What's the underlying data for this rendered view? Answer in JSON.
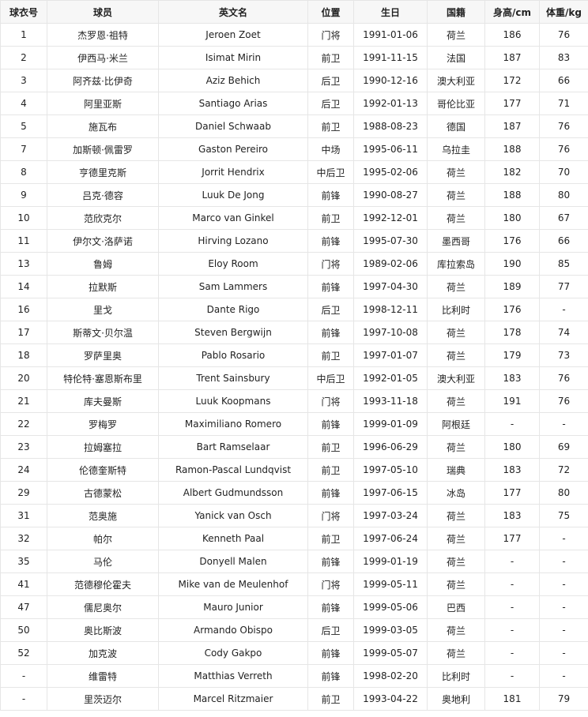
{
  "table": {
    "headers": [
      "球衣号",
      "球员",
      "英文名",
      "位置",
      "生日",
      "国籍",
      "身高/cm",
      "体重/kg"
    ],
    "rows": [
      [
        "1",
        "杰罗恩·祖特",
        "Jeroen Zoet",
        "门将",
        "1991-01-06",
        "荷兰",
        "186",
        "76"
      ],
      [
        "2",
        "伊西马·米兰",
        "Isimat Mirin",
        "前卫",
        "1991-11-15",
        "法国",
        "187",
        "83"
      ],
      [
        "3",
        "阿齐兹·比伊奇",
        "Aziz Behich",
        "后卫",
        "1990-12-16",
        "澳大利亚",
        "172",
        "66"
      ],
      [
        "4",
        "阿里亚斯",
        "Santiago Arias",
        "后卫",
        "1992-01-13",
        "哥伦比亚",
        "177",
        "71"
      ],
      [
        "5",
        "施瓦布",
        "Daniel Schwaab",
        "前卫",
        "1988-08-23",
        "德国",
        "187",
        "76"
      ],
      [
        "7",
        "加斯顿·佩雷罗",
        "Gaston Pereiro",
        "中场",
        "1995-06-11",
        "乌拉圭",
        "188",
        "76"
      ],
      [
        "8",
        "亨德里克斯",
        "Jorrit Hendrix",
        "中后卫",
        "1995-02-06",
        "荷兰",
        "182",
        "70"
      ],
      [
        "9",
        "吕克·德容",
        "Luuk De Jong",
        "前锋",
        "1990-08-27",
        "荷兰",
        "188",
        "80"
      ],
      [
        "10",
        "范欣克尔",
        "Marco van Ginkel",
        "前卫",
        "1992-12-01",
        "荷兰",
        "180",
        "67"
      ],
      [
        "11",
        "伊尔文·洛萨诺",
        "Hirving Lozano",
        "前锋",
        "1995-07-30",
        "墨西哥",
        "176",
        "66"
      ],
      [
        "13",
        "鲁姆",
        "Eloy Room",
        "门将",
        "1989-02-06",
        "库拉索岛",
        "190",
        "85"
      ],
      [
        "14",
        "拉默斯",
        "Sam Lammers",
        "前锋",
        "1997-04-30",
        "荷兰",
        "189",
        "77"
      ],
      [
        "16",
        "里戈",
        "Dante Rigo",
        "后卫",
        "1998-12-11",
        "比利时",
        "176",
        "-"
      ],
      [
        "17",
        "斯蒂文·贝尔温",
        "Steven Bergwijn",
        "前锋",
        "1997-10-08",
        "荷兰",
        "178",
        "74"
      ],
      [
        "18",
        "罗萨里奥",
        "Pablo Rosario",
        "前卫",
        "1997-01-07",
        "荷兰",
        "179",
        "73"
      ],
      [
        "20",
        "特伦特·塞恩斯布里",
        "Trent Sainsbury",
        "中后卫",
        "1992-01-05",
        "澳大利亚",
        "183",
        "76"
      ],
      [
        "21",
        "库夫曼斯",
        "Luuk Koopmans",
        "门将",
        "1993-11-18",
        "荷兰",
        "191",
        "76"
      ],
      [
        "22",
        "罗梅罗",
        "Maximiliano Romero",
        "前锋",
        "1999-01-09",
        "阿根廷",
        "-",
        "-"
      ],
      [
        "23",
        "拉姆塞拉",
        "Bart Ramselaar",
        "前卫",
        "1996-06-29",
        "荷兰",
        "180",
        "69"
      ],
      [
        "24",
        "伦德奎斯特",
        "Ramon-Pascal Lundqvist",
        "前卫",
        "1997-05-10",
        "瑞典",
        "183",
        "72"
      ],
      [
        "29",
        "古德蒙松",
        "Albert Gudmundsson",
        "前锋",
        "1997-06-15",
        "冰岛",
        "177",
        "80"
      ],
      [
        "31",
        "范奥施",
        "Yanick van Osch",
        "门将",
        "1997-03-24",
        "荷兰",
        "183",
        "75"
      ],
      [
        "32",
        "帕尔",
        "Kenneth Paal",
        "前卫",
        "1997-06-24",
        "荷兰",
        "177",
        "-"
      ],
      [
        "35",
        "马伦",
        "Donyell Malen",
        "前锋",
        "1999-01-19",
        "荷兰",
        "-",
        "-"
      ],
      [
        "41",
        "范德穆伦霍夫",
        "Mike van de Meulenhof",
        "门将",
        "1999-05-11",
        "荷兰",
        "-",
        "-"
      ],
      [
        "47",
        "儒尼奥尔",
        "Mauro Junior",
        "前锋",
        "1999-05-06",
        "巴西",
        "-",
        "-"
      ],
      [
        "50",
        "奥比斯波",
        "Armando Obispo",
        "后卫",
        "1999-03-05",
        "荷兰",
        "-",
        "-"
      ],
      [
        "52",
        "加克波",
        "Cody Gakpo",
        "前锋",
        "1999-05-07",
        "荷兰",
        "-",
        "-"
      ],
      [
        "-",
        "维雷特",
        "Matthias Verreth",
        "前锋",
        "1998-02-20",
        "比利时",
        "-",
        "-"
      ],
      [
        "-",
        "里茨迈尔",
        "Marcel Ritzmaier",
        "前卫",
        "1993-04-22",
        "奥地利",
        "181",
        "79"
      ]
    ]
  }
}
